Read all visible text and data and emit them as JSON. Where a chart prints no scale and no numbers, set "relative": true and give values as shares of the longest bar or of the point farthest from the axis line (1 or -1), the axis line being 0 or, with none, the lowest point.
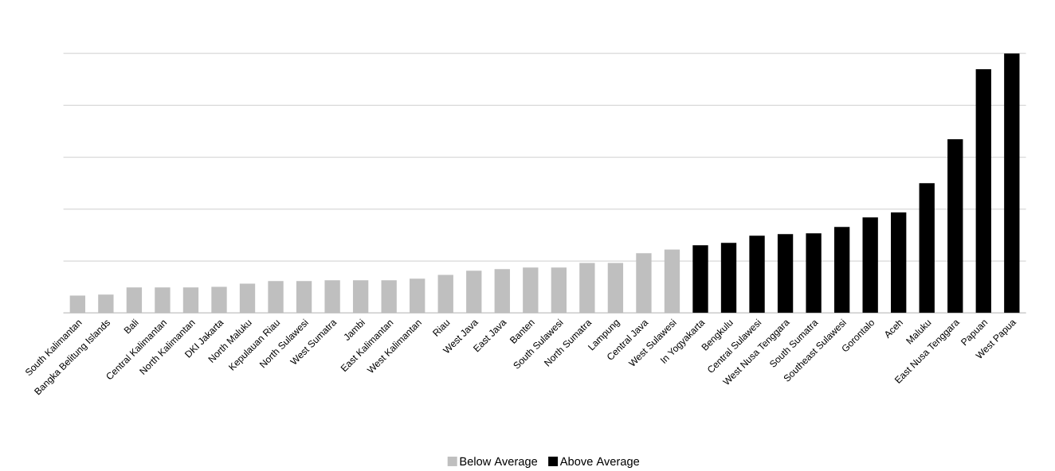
{
  "chart_data": {
    "type": "bar",
    "relative": true,
    "grid": "y",
    "legend": "bottom",
    "categories": [
      "South Kalimantan",
      "Bangka Belitung Islands",
      "Bali",
      "Central Kalimantan",
      "North Kalimantan",
      "DKI Jakarta",
      "North Maluku",
      "Kepulauan Riau",
      "North Sulawesi",
      "West Sumatra",
      "Jambi",
      "East Kalimantan",
      "West Kalimantan",
      "Riau",
      "West Java",
      "East Java",
      "Banten",
      "South Sulawesi",
      "North Sumatra",
      "Lampung",
      "Central Java",
      "West Sulawesi",
      "In Yogyakarta",
      "Bengkulu",
      "Central Sulawesi",
      "West Nusa Tenggara",
      "South Sumatra",
      "Southeast Sulawesi",
      "Gorontalo",
      "Aceh",
      "Maluku",
      "East Nusa Tenggara",
      "Papuan",
      "West Papua"
    ],
    "series": [
      {
        "name": "Below Average",
        "color": "#bfbfbf",
        "values": [
          0.067,
          0.071,
          0.098,
          0.098,
          0.098,
          0.101,
          0.113,
          0.123,
          0.123,
          0.126,
          0.126,
          0.126,
          0.132,
          0.147,
          0.163,
          0.169,
          0.175,
          0.175,
          0.193,
          0.193,
          0.23,
          0.245,
          null,
          null,
          null,
          null,
          null,
          null,
          null,
          null,
          null,
          null,
          null,
          null
        ]
      },
      {
        "name": "Above Average",
        "color": "#000000",
        "values": [
          null,
          null,
          null,
          null,
          null,
          null,
          null,
          null,
          null,
          null,
          null,
          null,
          null,
          null,
          null,
          null,
          null,
          null,
          null,
          null,
          null,
          null,
          0.261,
          0.27,
          0.298,
          0.304,
          0.307,
          0.331,
          0.368,
          0.387,
          0.5,
          0.669,
          0.939,
          1
        ]
      }
    ]
  }
}
